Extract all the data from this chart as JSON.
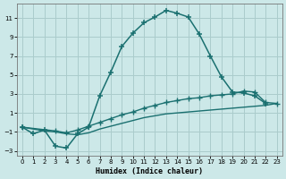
{
  "title": "",
  "xlabel": "Humidex (Indice chaleur)",
  "background_color": "#cce8e8",
  "grid_color": "#aacccc",
  "line_color": "#1a7070",
  "xlim": [
    -0.5,
    23.5
  ],
  "ylim": [
    -3.5,
    12.5
  ],
  "xticks": [
    0,
    1,
    2,
    3,
    4,
    5,
    6,
    7,
    8,
    9,
    10,
    11,
    12,
    13,
    14,
    15,
    16,
    17,
    18,
    19,
    20,
    21,
    22,
    23
  ],
  "yticks": [
    -3,
    -1,
    1,
    3,
    5,
    7,
    9,
    11
  ],
  "line1_x": [
    0,
    1,
    2,
    3,
    4,
    5,
    6,
    7,
    8,
    9,
    10,
    11,
    12,
    13,
    14,
    15,
    16,
    17,
    18,
    19,
    20,
    21,
    22
  ],
  "line1_y": [
    -0.5,
    -1.2,
    -0.8,
    -2.5,
    -2.7,
    -1.2,
    -0.5,
    2.8,
    5.3,
    8.0,
    9.4,
    10.5,
    11.1,
    11.8,
    11.5,
    11.1,
    9.3,
    7.0,
    4.8,
    3.2,
    3.1,
    2.8,
    2.0
  ],
  "line2_x": [
    0,
    3,
    4,
    5,
    6,
    7,
    8,
    9,
    10,
    11,
    12,
    13,
    14,
    15,
    16,
    17,
    18,
    19,
    20,
    21,
    22,
    23
  ],
  "line2_y": [
    -0.5,
    -0.9,
    -1.1,
    -0.8,
    -0.4,
    0.0,
    0.4,
    0.8,
    1.1,
    1.5,
    1.8,
    2.1,
    2.3,
    2.5,
    2.6,
    2.8,
    2.9,
    3.0,
    3.3,
    3.2,
    2.1,
    2.0
  ],
  "line3_x": [
    0,
    2,
    3,
    4,
    5,
    6,
    7,
    8,
    9,
    10,
    11,
    12,
    13,
    14,
    15,
    16,
    17,
    18,
    19,
    20,
    21,
    22,
    23
  ],
  "line3_y": [
    -0.5,
    -0.9,
    -1.0,
    -1.2,
    -1.3,
    -1.1,
    -0.7,
    -0.4,
    -0.1,
    0.2,
    0.5,
    0.7,
    0.9,
    1.0,
    1.1,
    1.2,
    1.3,
    1.4,
    1.5,
    1.6,
    1.7,
    1.8,
    2.0
  ]
}
